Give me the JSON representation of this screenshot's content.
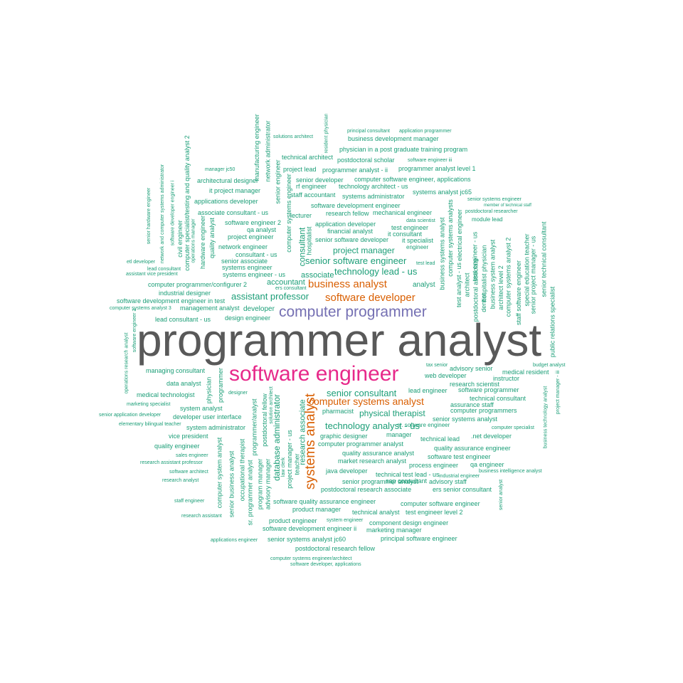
{
  "colors": {
    "top": "#595959",
    "second": "#e7298a",
    "third": "#7570b3",
    "fourth": "#d95f02",
    "rest": "#1b9e77"
  },
  "words": [
    {
      "text": "programmer analyst",
      "tier": "top"
    },
    {
      "text": "software engineer",
      "tier": "second"
    },
    {
      "text": "computer programmer",
      "tier": "third"
    },
    {
      "text": "systems analyst",
      "tier": "fourth"
    },
    {
      "text": "business analyst",
      "tier": "fourth"
    },
    {
      "text": "software developer",
      "tier": "fourth"
    },
    {
      "text": "computer systems analyst",
      "tier": "fourth"
    },
    {
      "text": "senior software engineer",
      "tier": "rest"
    },
    {
      "text": "technology lead - us",
      "tier": "rest"
    },
    {
      "text": "technology analyst - us",
      "tier": "rest"
    },
    {
      "text": "assistant professor",
      "tier": "rest"
    },
    {
      "text": "senior consultant",
      "tier": "rest"
    },
    {
      "text": "physical therapist",
      "tier": "rest"
    },
    {
      "text": "project manager",
      "tier": "rest"
    },
    {
      "text": "database administrator",
      "tier": "rest"
    },
    {
      "text": "consultant",
      "tier": "rest"
    },
    {
      "text": "research associate",
      "tier": "rest"
    },
    {
      "text": "associate",
      "tier": "rest"
    },
    {
      "text": "accountant",
      "tier": "rest"
    },
    {
      "text": "analyst",
      "tier": "rest"
    },
    {
      "text": "developer",
      "tier": "rest"
    },
    {
      "text": "design engineer",
      "tier": "rest"
    },
    {
      "text": "lead consultant - us",
      "tier": "rest"
    },
    {
      "text": "management analyst",
      "tier": "rest"
    },
    {
      "text": "software development engineer in test",
      "tier": "rest"
    },
    {
      "text": "industrial designer",
      "tier": "rest"
    },
    {
      "text": "computer programmer/configurer 2",
      "tier": "rest"
    },
    {
      "text": "systems engineer - us",
      "tier": "rest"
    },
    {
      "text": "systems engineer",
      "tier": "rest"
    },
    {
      "text": "senior associate",
      "tier": "rest"
    },
    {
      "text": "consultant - us",
      "tier": "rest"
    },
    {
      "text": "network engineer",
      "tier": "rest"
    },
    {
      "text": "project engineer",
      "tier": "rest"
    },
    {
      "text": "qa analyst",
      "tier": "rest"
    },
    {
      "text": "software engineer 2",
      "tier": "rest"
    },
    {
      "text": "associate consultant - us",
      "tier": "rest"
    },
    {
      "text": "applications developer",
      "tier": "rest"
    },
    {
      "text": "it project manager",
      "tier": "rest"
    },
    {
      "text": "architectural designer",
      "tier": "rest"
    },
    {
      "text": "manager jc50",
      "tier": "rest"
    },
    {
      "text": "solutions architect",
      "tier": "rest"
    },
    {
      "text": "principal consultant",
      "tier": "rest"
    },
    {
      "text": "application programmer",
      "tier": "rest"
    },
    {
      "text": "business development manager",
      "tier": "rest"
    },
    {
      "text": "physician in a post graduate training program",
      "tier": "rest"
    },
    {
      "text": "technical architect",
      "tier": "rest"
    },
    {
      "text": "postdoctoral scholar",
      "tier": "rest"
    },
    {
      "text": "software engineer iii",
      "tier": "rest"
    },
    {
      "text": "project lead",
      "tier": "rest"
    },
    {
      "text": "programmer analyst - ii",
      "tier": "rest"
    },
    {
      "text": "programmer analyst level 1",
      "tier": "rest"
    },
    {
      "text": "senior developer",
      "tier": "rest"
    },
    {
      "text": "computer software engineer, applications",
      "tier": "rest"
    },
    {
      "text": "rf engineer",
      "tier": "rest"
    },
    {
      "text": "technology architect - us",
      "tier": "rest"
    },
    {
      "text": "staff accountant",
      "tier": "rest"
    },
    {
      "text": "systems administrator",
      "tier": "rest"
    },
    {
      "text": "systems analyst jc65",
      "tier": "rest"
    },
    {
      "text": "senior systems engineer",
      "tier": "rest"
    },
    {
      "text": "member of technical staff",
      "tier": "rest"
    },
    {
      "text": "postdoctoral researcher",
      "tier": "rest"
    },
    {
      "text": "software development engineer",
      "tier": "rest"
    },
    {
      "text": "lecturer",
      "tier": "rest"
    },
    {
      "text": "research fellow",
      "tier": "rest"
    },
    {
      "text": "mechanical engineer",
      "tier": "rest"
    },
    {
      "text": "data scientist",
      "tier": "rest"
    },
    {
      "text": "application developer",
      "tier": "rest"
    },
    {
      "text": "test engineer",
      "tier": "rest"
    },
    {
      "text": "financial analyst",
      "tier": "rest"
    },
    {
      "text": "it consultant",
      "tier": "rest"
    },
    {
      "text": "senior software developer",
      "tier": "rest"
    },
    {
      "text": "it specialist",
      "tier": "rest"
    },
    {
      "text": "engineer",
      "tier": "rest"
    },
    {
      "text": "module lead",
      "tier": "rest"
    },
    {
      "text": "test lead",
      "tier": "rest"
    },
    {
      "text": "sr. software engineer",
      "tier": "rest"
    },
    {
      "text": "web developer",
      "tier": "rest"
    },
    {
      "text": "lead engineer",
      "tier": "rest"
    },
    {
      "text": "software programmer",
      "tier": "rest"
    },
    {
      "text": "research scientist",
      "tier": "rest"
    },
    {
      "text": "advisory senior",
      "tier": "rest"
    },
    {
      "text": "tax senior",
      "tier": "rest"
    },
    {
      "text": "instructor",
      "tier": "rest"
    },
    {
      "text": "medical resident",
      "tier": "rest"
    },
    {
      "text": "budget analyst",
      "tier": "rest"
    },
    {
      "text": "technical consultant",
      "tier": "rest"
    },
    {
      "text": "assurance staff",
      "tier": "rest"
    },
    {
      "text": "computer programmers",
      "tier": "rest"
    },
    {
      "text": "senior systems analyst",
      "tier": "rest"
    },
    {
      "text": "computer specialist",
      "tier": "rest"
    },
    {
      "text": ".net developer",
      "tier": "rest"
    },
    {
      "text": "technical lead",
      "tier": "rest"
    },
    {
      "text": "quality assurance engineer",
      "tier": "rest"
    },
    {
      "text": "software test engineer",
      "tier": "rest"
    },
    {
      "text": "qa engineer",
      "tier": "rest"
    },
    {
      "text": "business intelligence analyst",
      "tier": "rest"
    },
    {
      "text": "pharmacist",
      "tier": "rest"
    },
    {
      "text": "graphic designer",
      "tier": "rest"
    },
    {
      "text": "manager",
      "tier": "rest"
    },
    {
      "text": "computer programmer analyst",
      "tier": "rest"
    },
    {
      "text": "quality assurance analyst",
      "tier": "rest"
    },
    {
      "text": "market research analyst",
      "tier": "rest"
    },
    {
      "text": "process engineer",
      "tier": "rest"
    },
    {
      "text": "java developer",
      "tier": "rest"
    },
    {
      "text": "technical test lead - us",
      "tier": "rest"
    },
    {
      "text": "sap consultant",
      "tier": "rest"
    },
    {
      "text": "industrial engineer",
      "tier": "rest"
    },
    {
      "text": "senior programmer analyst",
      "tier": "rest"
    },
    {
      "text": "advisory staff",
      "tier": "rest"
    },
    {
      "text": "postdoctoral research associate",
      "tier": "rest"
    },
    {
      "text": "ers senior consultant",
      "tier": "rest"
    },
    {
      "text": "software quality assurance engineer",
      "tier": "rest"
    },
    {
      "text": "computer software engineer",
      "tier": "rest"
    },
    {
      "text": "product manager",
      "tier": "rest"
    },
    {
      "text": "technical analyst",
      "tier": "rest"
    },
    {
      "text": "test engineer level 2",
      "tier": "rest"
    },
    {
      "text": "product engineer",
      "tier": "rest"
    },
    {
      "text": "system engineer",
      "tier": "rest"
    },
    {
      "text": "component design engineer",
      "tier": "rest"
    },
    {
      "text": "software development engineer ii",
      "tier": "rest"
    },
    {
      "text": "marketing manager",
      "tier": "rest"
    },
    {
      "text": "senior systems analyst jc60",
      "tier": "rest"
    },
    {
      "text": "principal software engineer",
      "tier": "rest"
    },
    {
      "text": "applications engineer",
      "tier": "rest"
    },
    {
      "text": "postdoctoral research fellow",
      "tier": "rest"
    },
    {
      "text": "computer systems engineer/architect",
      "tier": "rest"
    },
    {
      "text": "software developer, applications",
      "tier": "rest"
    },
    {
      "text": "managing consultant",
      "tier": "rest"
    },
    {
      "text": "data analyst",
      "tier": "rest"
    },
    {
      "text": "medical technologist",
      "tier": "rest"
    },
    {
      "text": "marketing specialist",
      "tier": "rest"
    },
    {
      "text": "system analyst",
      "tier": "rest"
    },
    {
      "text": "senior application developer",
      "tier": "rest"
    },
    {
      "text": "developer user interface",
      "tier": "rest"
    },
    {
      "text": "elementary bilingual teacher",
      "tier": "rest"
    },
    {
      "text": "system administrator",
      "tier": "rest"
    },
    {
      "text": "vice president",
      "tier": "rest"
    },
    {
      "text": "quality engineer",
      "tier": "rest"
    },
    {
      "text": "sales engineer",
      "tier": "rest"
    },
    {
      "text": "research assistant professor",
      "tier": "rest"
    },
    {
      "text": "software architect",
      "tier": "rest"
    },
    {
      "text": "research analyst",
      "tier": "rest"
    },
    {
      "text": "staff engineer",
      "tier": "rest"
    },
    {
      "text": "research assistant",
      "tier": "rest"
    },
    {
      "text": "etl developer",
      "tier": "rest"
    },
    {
      "text": "lead consultant",
      "tier": "rest"
    },
    {
      "text": "assistant vice president",
      "tier": "rest"
    },
    {
      "text": "computer systems analyst 3",
      "tier": "rest"
    },
    {
      "text": "ers consultant",
      "tier": "rest"
    },
    {
      "text": "designer",
      "tier": "rest"
    },
    {
      "text": "physician",
      "tier": "rest"
    },
    {
      "text": "programmer",
      "tier": "rest"
    },
    {
      "text": "senior hardware engineer",
      "tier": "rest"
    },
    {
      "text": "network and computer systems administrator",
      "tier": "rest"
    },
    {
      "text": "software developer engineer i",
      "tier": "rest"
    },
    {
      "text": "computer specialist/testing and quality analyst 2",
      "tier": "rest"
    },
    {
      "text": "civil engineer",
      "tier": "rest"
    },
    {
      "text": "operations manager",
      "tier": "rest"
    },
    {
      "text": "hardware engineer",
      "tier": "rest"
    },
    {
      "text": "quality analyst",
      "tier": "rest"
    },
    {
      "text": "manufacturing engineer",
      "tier": "rest"
    },
    {
      "text": "network administrator",
      "tier": "rest"
    },
    {
      "text": "resident physician",
      "tier": "rest"
    },
    {
      "text": "senior engineer",
      "tier": "rest"
    },
    {
      "text": "computer systems engineer",
      "tier": "rest"
    },
    {
      "text": "hospitalist",
      "tier": "rest"
    },
    {
      "text": "computer systems analysts",
      "tier": "rest"
    },
    {
      "text": "business systems analyst",
      "tier": "rest"
    },
    {
      "text": "electrical engineer",
      "tier": "rest"
    },
    {
      "text": "test analyst - us",
      "tier": "rest"
    },
    {
      "text": "architect",
      "tier": "rest"
    },
    {
      "text": "test engineer - us",
      "tier": "rest"
    },
    {
      "text": "postdoctoral associate",
      "tier": "rest"
    },
    {
      "text": "dentist",
      "tier": "rest"
    },
    {
      "text": "hospitalist physician",
      "tier": "rest"
    },
    {
      "text": "business system analyst",
      "tier": "rest"
    },
    {
      "text": "architect level 2",
      "tier": "rest"
    },
    {
      "text": "computer systems analyst 2",
      "tier": "rest"
    },
    {
      "text": "staff software engineer",
      "tier": "rest"
    },
    {
      "text": "special education teacher",
      "tier": "rest"
    },
    {
      "text": "senior project manager - us",
      "tier": "rest"
    },
    {
      "text": "senior technical consultant",
      "tier": "rest"
    },
    {
      "text": "public relations specialist",
      "tier": "rest"
    },
    {
      "text": "software engineer 3",
      "tier": "rest"
    },
    {
      "text": "operations research analyst",
      "tier": "rest"
    },
    {
      "text": "computer system analyst",
      "tier": "rest"
    },
    {
      "text": "senior business analyst",
      "tier": "rest"
    },
    {
      "text": "occupational therapist",
      "tier": "rest"
    },
    {
      "text": "sr. programmer analyst",
      "tier": "rest"
    },
    {
      "text": "program manager",
      "tier": "rest"
    },
    {
      "text": "programmer/analyst",
      "tier": "rest"
    },
    {
      "text": "advisory manager",
      "tier": "rest"
    },
    {
      "text": "postdoctoral fellow",
      "tier": "rest"
    },
    {
      "text": "solution architect",
      "tier": "rest"
    },
    {
      "text": "law clerk",
      "tier": "rest"
    },
    {
      "text": "teacher",
      "tier": "rest"
    },
    {
      "text": "project manager - us",
      "tier": "rest"
    },
    {
      "text": "business technology analyst",
      "tier": "rest"
    },
    {
      "text": "project manager - iii",
      "tier": "rest"
    },
    {
      "text": "senior analyst",
      "tier": "rest"
    }
  ]
}
